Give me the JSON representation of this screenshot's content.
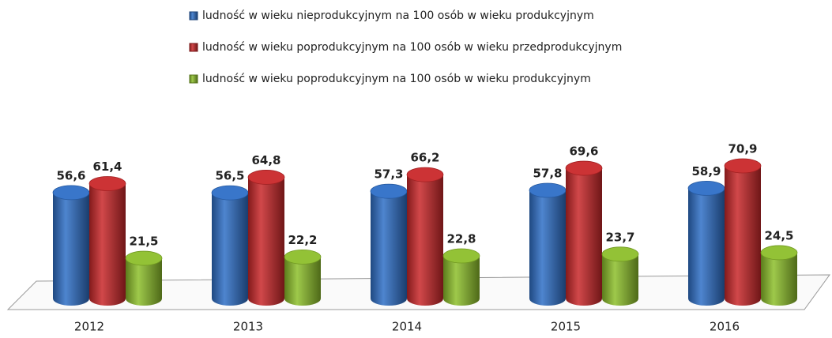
{
  "chart_data": {
    "type": "bar",
    "categories": [
      "2012",
      "2013",
      "2014",
      "2015",
      "2016"
    ],
    "series": [
      {
        "name": "ludność w wieku nieprodukcyjnym na 100 osób w wieku produkcyjnym",
        "color": "#2f6fc7",
        "values": [
          56.6,
          56.5,
          57.3,
          57.8,
          58.9
        ],
        "value_labels": [
          "56,6",
          "56,5",
          "57,3",
          "57,8",
          "58,9"
        ]
      },
      {
        "name": "ludność w wieku poprodukcyjnym na 100 osób w wieku przedprodukcyjnym",
        "color": "#c9282a",
        "values": [
          61.4,
          64.8,
          66.2,
          69.6,
          70.9
        ],
        "value_labels": [
          "61,4",
          "64,8",
          "66,2",
          "69,6",
          "70,9"
        ]
      },
      {
        "name": "ludność w wieku poprodukcyjnym na 100 osób w wieku produkcyjnym",
        "color": "#8dbf2b",
        "values": [
          21.5,
          22.2,
          22.8,
          23.7,
          24.5
        ],
        "value_labels": [
          "21,5",
          "22,2",
          "22,8",
          "23,7",
          "24,5"
        ]
      }
    ]
  }
}
